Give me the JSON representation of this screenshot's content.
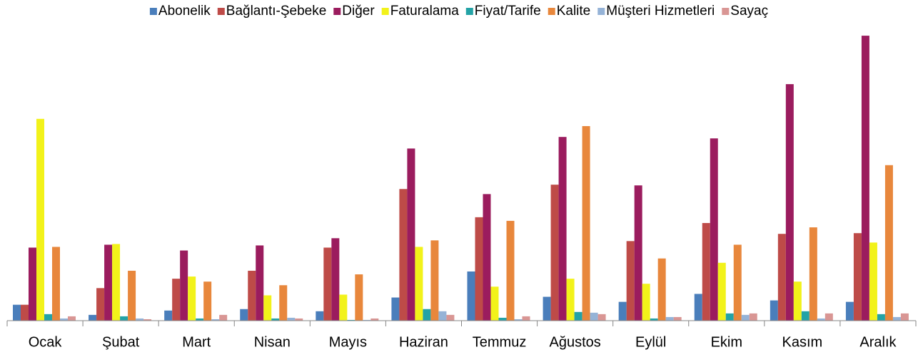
{
  "chart_data": {
    "type": "bar",
    "categories": [
      "Ocak",
      "Şubat",
      "Mart",
      "Nisan",
      "Mayıs",
      "Haziran",
      "Temmuz",
      "Ağustos",
      "Eylül",
      "Ekim",
      "Kasım",
      "Aralık"
    ],
    "series": [
      {
        "name": "Abonelik",
        "color": "#4a7ebb",
        "values": [
          22,
          8,
          14,
          16,
          13,
          32,
          68,
          33,
          26,
          37,
          28,
          26
        ]
      },
      {
        "name": "Bağlantı-Şebeke",
        "color": "#be4b48",
        "values": [
          22,
          45,
          58,
          69,
          101,
          182,
          143,
          188,
          110,
          135,
          120,
          121
        ]
      },
      {
        "name": "Diğer",
        "color": "#9b1c5e",
        "values": [
          101,
          105,
          97,
          104,
          114,
          238,
          175,
          254,
          187,
          252,
          327,
          394
        ]
      },
      {
        "name": "Faturalama",
        "color": "#f2f21a",
        "values": [
          279,
          106,
          61,
          35,
          36,
          102,
          47,
          58,
          51,
          80,
          54,
          108
        ]
      },
      {
        "name": "Fiyat/Tarife",
        "color": "#23a3a6",
        "values": [
          9,
          6,
          3,
          3,
          1,
          16,
          4,
          12,
          3,
          10,
          13,
          9
        ]
      },
      {
        "name": "Kalite",
        "color": "#e8873c",
        "values": [
          102,
          69,
          54,
          49,
          64,
          111,
          138,
          269,
          86,
          105,
          129,
          215
        ]
      },
      {
        "name": "Müşteri Hizmetleri",
        "color": "#95b3d7",
        "values": [
          3,
          3,
          2,
          4,
          1,
          13,
          2,
          11,
          5,
          8,
          3,
          5
        ]
      },
      {
        "name": "Sayaç",
        "color": "#d99694",
        "values": [
          6,
          2,
          8,
          3,
          3,
          8,
          6,
          9,
          5,
          10,
          10,
          10
        ]
      }
    ],
    "ylim": [
      0,
      400
    ]
  }
}
